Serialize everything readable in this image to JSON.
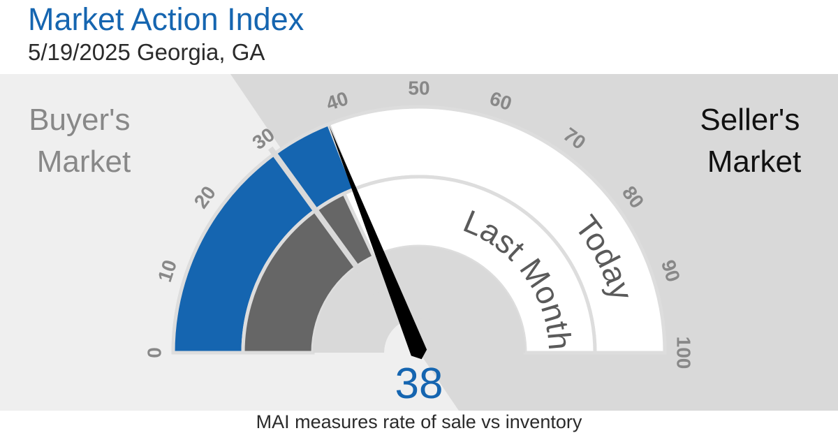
{
  "header": {
    "title": "Market Action Index",
    "subtitle": "5/19/2025 Georgia, GA"
  },
  "footer": {
    "note": "MAI measures rate of sale vs inventory"
  },
  "zones": {
    "buyers": "Buyer's\nMarket",
    "sellers": "Seller's\nMarket"
  },
  "colors": {
    "today": "#1565b0",
    "last_month": "#666666",
    "track": "#ffffff",
    "buyer_zone": "#efefef",
    "seller_zone": "#d9d9d9",
    "needle": "#000000",
    "value_text": "#1565b0"
  },
  "chart_data": {
    "type": "gauge",
    "range": [
      0,
      100
    ],
    "ticks": [
      0,
      10,
      20,
      30,
      40,
      50,
      60,
      70,
      80,
      90,
      100
    ],
    "zone_threshold": 30,
    "today": 38,
    "last_month": 36,
    "value_label": "38",
    "band_labels": {
      "today": "Today",
      "last_month": "Last Month"
    }
  }
}
